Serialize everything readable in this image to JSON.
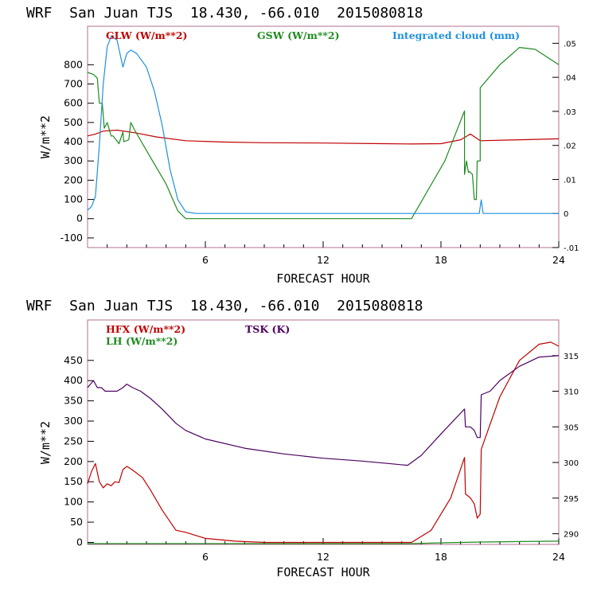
{
  "panel_top": {
    "title": "WRF  San Juan TJS  18.430, -66.010  2015080818",
    "xlabel": "FORECAST HOUR",
    "ylabel": "W/m**2"
  },
  "panel_bottom": {
    "title": "WRF  San Juan TJS  18.430, -66.010  2015080818",
    "xlabel": "FORECAST HOUR",
    "ylabel": "W/m**2"
  },
  "colors": {
    "red": "#c00000",
    "green": "#1f8a1f",
    "blue": "#1e90e0",
    "purple": "#4b0060"
  },
  "chart_data": [
    {
      "type": "line",
      "title": "WRF  San Juan TJS  18.430, -66.010  2015080818",
      "xlabel": "FORECAST HOUR",
      "ylabel": "W/m**2",
      "xlim": [
        0,
        24
      ],
      "ylim": [
        -150,
        1000
      ],
      "y2lim": [
        -0.01,
        0.055
      ],
      "x_ticks": [
        6,
        12,
        18,
        24
      ],
      "y_ticks": [
        -100,
        0,
        100,
        200,
        300,
        400,
        500,
        600,
        700,
        800
      ],
      "y2_ticks": [
        -0.01,
        0,
        0.01,
        0.02,
        0.03,
        0.04,
        0.05
      ],
      "y2_tick_labels": [
        "-.01",
        "0",
        ".01",
        ".02",
        ".03",
        ".04",
        ".05"
      ],
      "series": [
        {
          "name": "GLW (W/m**2)",
          "color": "#c00000",
          "axis": "left",
          "x": [
            0,
            0.4,
            0.8,
            1.5,
            2.5,
            3.5,
            5,
            7,
            9,
            12,
            15,
            16.5,
            18,
            19,
            19.5,
            20,
            22,
            24
          ],
          "y": [
            430,
            440,
            455,
            460,
            445,
            425,
            405,
            398,
            395,
            393,
            390,
            388,
            390,
            410,
            440,
            405,
            410,
            415
          ]
        },
        {
          "name": "GSW (W/m**2)",
          "color": "#1f8a1f",
          "axis": "left",
          "x": [
            0,
            0.3,
            0.5,
            0.6,
            0.75,
            0.85,
            1.0,
            1.2,
            1.3,
            1.6,
            1.8,
            1.85,
            2.1,
            2.2,
            2.4,
            3.2,
            4.0,
            4.6,
            5.0,
            16.0,
            16.5,
            18.2,
            19.2,
            19.2,
            19.3,
            19.4,
            19.45,
            19.6,
            19.7,
            19.8,
            19.85,
            20.0,
            20.0,
            21.0,
            22.0,
            22.8,
            24.0
          ],
          "y": [
            760,
            750,
            730,
            600,
            600,
            470,
            500,
            430,
            430,
            390,
            450,
            400,
            410,
            500,
            460,
            320,
            180,
            40,
            0,
            0,
            0,
            300,
            560,
            230,
            300,
            240,
            245,
            230,
            100,
            100,
            300,
            300,
            680,
            800,
            890,
            880,
            800
          ]
        },
        {
          "name": "Integrated cloud (mm)",
          "color": "#1e90e0",
          "axis": "right",
          "x": [
            0,
            0.2,
            0.4,
            0.6,
            0.8,
            1.0,
            1.2,
            1.5,
            1.8,
            2.0,
            2.2,
            2.5,
            3.0,
            3.4,
            3.8,
            4.2,
            4.6,
            5.0,
            5.5,
            19.95,
            20.05,
            20.15,
            24.0
          ],
          "y": [
            0.001,
            0.002,
            0.005,
            0.02,
            0.038,
            0.049,
            0.052,
            0.051,
            0.043,
            0.047,
            0.048,
            0.047,
            0.043,
            0.036,
            0.026,
            0.013,
            0.004,
            0.0005,
            0,
            0,
            0.004,
            0,
            0
          ]
        }
      ]
    },
    {
      "type": "line",
      "title": "WRF  San Juan TJS  18.430, -66.010  2015080818",
      "xlabel": "FORECAST HOUR",
      "ylabel": "W/m**2",
      "xlim": [
        0,
        24
      ],
      "ylim": [
        -5,
        550
      ],
      "y2lim": [
        288.5,
        320
      ],
      "x_ticks": [
        6,
        12,
        18,
        24
      ],
      "y_ticks": [
        0,
        50,
        100,
        150,
        200,
        250,
        300,
        350,
        400,
        450
      ],
      "y2_ticks": [
        290,
        295,
        300,
        305,
        310,
        315
      ],
      "y2_tick_labels": [
        "290",
        "295",
        "300",
        "305",
        "310",
        "315"
      ],
      "series": [
        {
          "name": "HFX (W/m**2)",
          "color": "#c00000",
          "axis": "left",
          "x": [
            0,
            0.2,
            0.4,
            0.6,
            0.8,
            1.0,
            1.2,
            1.4,
            1.6,
            1.8,
            2.0,
            2.2,
            2.4,
            2.8,
            3.2,
            3.8,
            4.5,
            5.0,
            6.0,
            7.5,
            9.0,
            12.0,
            15.0,
            16.5,
            17.5,
            18.5,
            19.2,
            19.25,
            19.5,
            19.7,
            19.85,
            20.0,
            20.05,
            21.0,
            22.0,
            23.0,
            23.6,
            24.0
          ],
          "y": [
            145,
            175,
            195,
            150,
            135,
            145,
            140,
            150,
            148,
            180,
            188,
            182,
            175,
            160,
            130,
            80,
            30,
            25,
            10,
            3,
            0,
            0,
            0,
            0,
            30,
            110,
            210,
            120,
            110,
            95,
            60,
            70,
            230,
            360,
            450,
            490,
            495,
            485
          ]
        },
        {
          "name": "LH  (W/m**2)",
          "color": "#1f8a1f",
          "axis": "left",
          "x": [
            0,
            6,
            12,
            16.5,
            18,
            20,
            22,
            24
          ],
          "y": [
            -3,
            -3,
            -3,
            -3,
            -1,
            1,
            2,
            3
          ]
        },
        {
          "name": "TSK (K)",
          "color": "#4b0060",
          "axis": "right",
          "x": [
            0,
            0.3,
            0.5,
            0.7,
            0.9,
            1.2,
            1.5,
            1.8,
            2.0,
            2.3,
            2.7,
            3.2,
            3.8,
            4.5,
            5.0,
            6.0,
            8.0,
            10.0,
            12.0,
            14.0,
            16.3,
            17.0,
            18.0,
            19.2,
            19.25,
            19.5,
            19.7,
            19.85,
            20.0,
            20.05,
            20.5,
            21.0,
            22.0,
            23.0,
            24.0
          ],
          "y": [
            310.5,
            311.5,
            310.5,
            310.5,
            310,
            310,
            310,
            310.5,
            311,
            310.5,
            310,
            309,
            307.5,
            305.5,
            304.5,
            303.3,
            302,
            301.2,
            300.6,
            300.2,
            299.6,
            301,
            304,
            307.5,
            305,
            305,
            304.5,
            303.5,
            303.5,
            309.5,
            310,
            311.5,
            313.5,
            314.8,
            315
          ]
        }
      ]
    }
  ]
}
